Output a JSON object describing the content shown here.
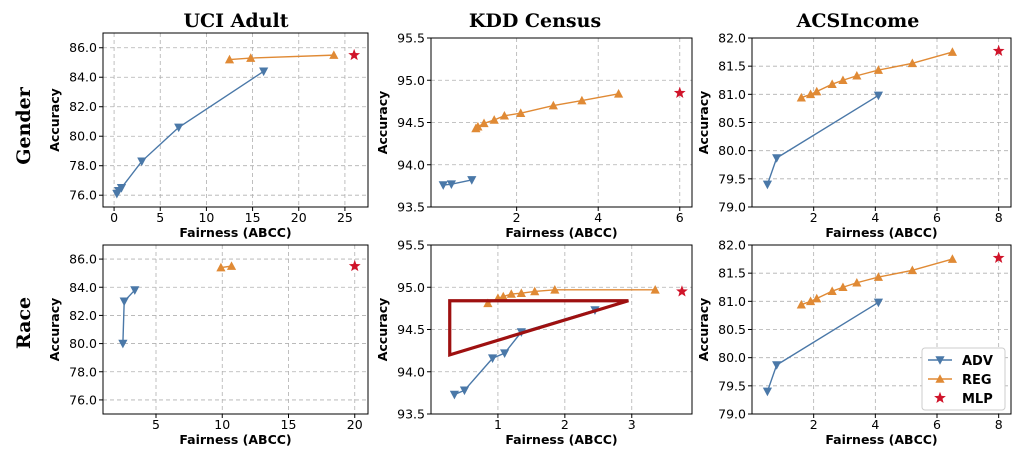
{
  "columns": [
    "UCI Adult",
    "KDD Census",
    "ACSIncome"
  ],
  "rows": [
    "Gender",
    "Race"
  ],
  "colors": {
    "ADV": "#4a78a8",
    "REG": "#e08a35",
    "MLP": "#d0142a",
    "highlight": "#9e1010"
  },
  "legend": {
    "items": [
      {
        "name": "ADV",
        "marker": "triangle-down"
      },
      {
        "name": "REG",
        "marker": "triangle-up"
      },
      {
        "name": "MLP",
        "marker": "star"
      }
    ],
    "placement": "lower-right of last panel"
  },
  "chart_data": [
    {
      "type": "line",
      "title": "UCI Adult",
      "row": "Gender",
      "xlabel": "Fairness (ABCC)",
      "ylabel": "Accuracy",
      "xlim": [
        -1.2,
        27.5
      ],
      "ylim": [
        75.2,
        87.0
      ],
      "grid": true,
      "xticks": [
        0,
        5,
        10,
        15,
        20,
        25
      ],
      "xtick_labels": [
        "0",
        "5",
        "10",
        "15",
        "20",
        "25"
      ],
      "yticks": [
        76,
        78,
        80,
        82,
        84,
        86
      ],
      "ytick_labels": [
        "76.0",
        "78.0",
        "80.0",
        "82.0",
        "84.0",
        "86.0"
      ],
      "series": [
        {
          "name": "ADV",
          "x": [
            0.3,
            0.5,
            0.8,
            3.0,
            7.0,
            16.2
          ],
          "y": [
            76.1,
            76.3,
            76.5,
            78.3,
            80.6,
            84.4
          ]
        },
        {
          "name": "REG",
          "x": [
            12.5,
            14.8,
            23.8
          ],
          "y": [
            85.2,
            85.3,
            85.5
          ]
        },
        {
          "name": "MLP",
          "x": [
            26.0
          ],
          "y": [
            85.5
          ]
        }
      ]
    },
    {
      "type": "line",
      "title": "KDD Census",
      "row": "Gender",
      "xlabel": "Fairness (ABCC)",
      "ylabel": "Accuracy",
      "xlim": [
        -0.1,
        6.3
      ],
      "ylim": [
        93.5,
        95.5
      ],
      "grid": true,
      "xticks": [
        2,
        4,
        6
      ],
      "xtick_labels": [
        "2",
        "4",
        "6"
      ],
      "yticks": [
        93.5,
        94.0,
        94.5,
        95.0,
        95.5
      ],
      "ytick_labels": [
        "93.5",
        "94.0",
        "94.5",
        "95.0",
        "95.5"
      ],
      "series": [
        {
          "name": "ADV",
          "x": [
            0.2,
            0.4,
            0.9
          ],
          "y": [
            93.76,
            93.77,
            93.82
          ]
        },
        {
          "name": "REG",
          "x": [
            1.0,
            1.05,
            1.2,
            1.45,
            1.7,
            2.1,
            2.9,
            3.6,
            4.5
          ],
          "y": [
            94.43,
            94.45,
            94.49,
            94.53,
            94.58,
            94.61,
            94.7,
            94.76,
            94.84
          ]
        },
        {
          "name": "MLP",
          "x": [
            6.0
          ],
          "y": [
            94.85
          ]
        }
      ]
    },
    {
      "type": "line",
      "title": "ACSIncome",
      "row": "Gender",
      "xlabel": "Fairness (ABCC)",
      "ylabel": "Accuracy",
      "xlim": [
        0.0,
        8.4
      ],
      "ylim": [
        79.0,
        82.0
      ],
      "grid": true,
      "xticks": [
        2,
        4,
        6,
        8
      ],
      "xtick_labels": [
        "2",
        "4",
        "6",
        "8"
      ],
      "yticks": [
        79.0,
        79.5,
        80.0,
        80.5,
        81.0,
        81.5,
        82.0
      ],
      "ytick_labels": [
        "79.0",
        "79.5",
        "80.0",
        "80.5",
        "81.0",
        "81.5",
        "82.0"
      ],
      "series": [
        {
          "name": "ADV",
          "x": [
            0.5,
            0.8,
            4.1
          ],
          "y": [
            79.4,
            79.87,
            80.98
          ]
        },
        {
          "name": "REG",
          "x": [
            1.6,
            1.9,
            2.1,
            2.6,
            2.95,
            3.4,
            4.1,
            5.2,
            6.5
          ],
          "y": [
            80.94,
            81.0,
            81.05,
            81.18,
            81.25,
            81.33,
            81.43,
            81.55,
            81.75
          ]
        },
        {
          "name": "MLP",
          "x": [
            8.0
          ],
          "y": [
            81.77
          ]
        }
      ]
    },
    {
      "type": "line",
      "title": "UCI Adult",
      "row": "Race",
      "xlabel": "Fairness (ABCC)",
      "ylabel": "Accuracy",
      "xlim": [
        1.0,
        21.0
      ],
      "ylim": [
        75.0,
        87.0
      ],
      "grid": true,
      "xticks": [
        5,
        10,
        15,
        20
      ],
      "xtick_labels": [
        "5",
        "10",
        "15",
        "20"
      ],
      "yticks": [
        76,
        78,
        80,
        82,
        84,
        86
      ],
      "ytick_labels": [
        "76.0",
        "78.0",
        "80.0",
        "82.0",
        "84.0",
        "86.0"
      ],
      "series": [
        {
          "name": "ADV",
          "x": [
            2.5,
            2.6,
            3.4
          ],
          "y": [
            80.0,
            83.0,
            83.8
          ]
        },
        {
          "name": "REG",
          "x": [
            9.9,
            10.7
          ],
          "y": [
            85.4,
            85.5
          ]
        },
        {
          "name": "MLP",
          "x": [
            20.0
          ],
          "y": [
            85.5
          ]
        }
      ]
    },
    {
      "type": "line",
      "title": "KDD Census",
      "row": "Race",
      "xlabel": "Fairness (ABCC)",
      "ylabel": "Accuracy",
      "xlim": [
        0.0,
        3.9
      ],
      "ylim": [
        93.5,
        95.5
      ],
      "grid": true,
      "xticks": [
        1,
        2,
        3
      ],
      "xtick_labels": [
        "1",
        "2",
        "3"
      ],
      "yticks": [
        93.5,
        94.0,
        94.5,
        95.0,
        95.5
      ],
      "ytick_labels": [
        "93.5",
        "94.0",
        "94.5",
        "95.0",
        "95.5"
      ],
      "series": [
        {
          "name": "ADV",
          "x": [
            0.35,
            0.5,
            0.92,
            1.1,
            1.35,
            2.45
          ],
          "y": [
            93.73,
            93.78,
            94.16,
            94.22,
            94.47,
            94.73
          ]
        },
        {
          "name": "REG",
          "x": [
            0.85,
            1.0,
            1.08,
            1.2,
            1.35,
            1.55,
            1.85,
            3.35
          ],
          "y": [
            94.81,
            94.87,
            94.89,
            94.92,
            94.93,
            94.95,
            94.97,
            94.97
          ]
        },
        {
          "name": "MLP",
          "x": [
            3.75
          ],
          "y": [
            94.95
          ]
        }
      ],
      "annotation": {
        "shape": "triangle",
        "vertices": [
          [
            0.28,
            94.84
          ],
          [
            2.95,
            94.84
          ],
          [
            0.28,
            94.2
          ]
        ]
      }
    },
    {
      "type": "line",
      "title": "ACSIncome",
      "row": "Race",
      "xlabel": "Fairness (ABCC)",
      "ylabel": "Accuracy",
      "xlim": [
        0.0,
        8.4
      ],
      "ylim": [
        79.0,
        82.0
      ],
      "grid": true,
      "xticks": [
        2,
        4,
        6,
        8
      ],
      "xtick_labels": [
        "2",
        "4",
        "6",
        "8"
      ],
      "yticks": [
        79.0,
        79.5,
        80.0,
        80.5,
        81.0,
        81.5,
        82.0
      ],
      "ytick_labels": [
        "79.0",
        "79.5",
        "80.0",
        "80.5",
        "81.0",
        "81.5",
        "82.0"
      ],
      "series": [
        {
          "name": "ADV",
          "x": [
            0.5,
            0.8,
            4.1
          ],
          "y": [
            79.4,
            79.87,
            80.98
          ]
        },
        {
          "name": "REG",
          "x": [
            1.6,
            1.9,
            2.1,
            2.6,
            2.95,
            3.4,
            4.1,
            5.2,
            6.5
          ],
          "y": [
            80.94,
            81.0,
            81.05,
            81.18,
            81.25,
            81.33,
            81.43,
            81.55,
            81.75
          ]
        },
        {
          "name": "MLP",
          "x": [
            8.0
          ],
          "y": [
            81.77
          ]
        }
      ]
    }
  ]
}
